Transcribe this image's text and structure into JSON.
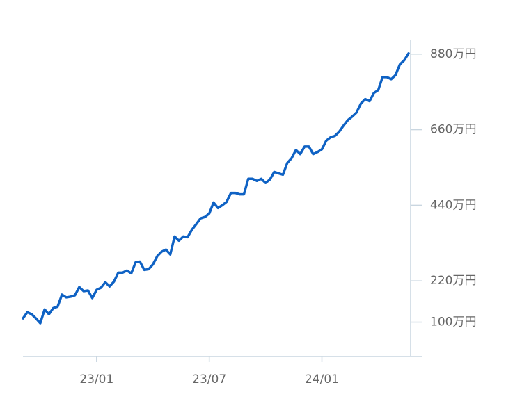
{
  "chart_data": {
    "type": "line",
    "categories": [
      null,
      null,
      null,
      null,
      null,
      null,
      null,
      null,
      null,
      null,
      null,
      null,
      null,
      null,
      null,
      null,
      null,
      "23/01",
      null,
      null,
      null,
      null,
      null,
      null,
      null,
      null,
      null,
      null,
      null,
      null,
      null,
      null,
      null,
      null,
      null,
      null,
      null,
      null,
      null,
      null,
      null,
      null,
      null,
      "23/07",
      null,
      null,
      null,
      null,
      null,
      null,
      null,
      null,
      null,
      null,
      null,
      null,
      null,
      null,
      null,
      null,
      null,
      null,
      null,
      null,
      null,
      null,
      null,
      null,
      null,
      "24/01",
      null,
      null,
      null,
      null,
      null,
      null,
      null,
      null,
      null,
      null,
      null,
      null,
      null,
      null,
      null,
      null,
      null,
      null,
      null,
      null
    ],
    "values": [
      111,
      129,
      123,
      111,
      97,
      137,
      123,
      141,
      145,
      180,
      172,
      174,
      178,
      202,
      190,
      192,
      170,
      194,
      200,
      216,
      204,
      218,
      244,
      244,
      250,
      242,
      274,
      276,
      252,
      254,
      268,
      292,
      305,
      311,
      297,
      349,
      337,
      349,
      347,
      369,
      385,
      402,
      406,
      416,
      448,
      432,
      440,
      450,
      476,
      476,
      472,
      472,
      517,
      517,
      511,
      517,
      505,
      515,
      537,
      533,
      529,
      563,
      577,
      601,
      589,
      611,
      611,
      589,
      595,
      603,
      628,
      638,
      642,
      654,
      672,
      688,
      698,
      710,
      736,
      749,
      743,
      767,
      775,
      813,
      813,
      807,
      819,
      850,
      862,
      882
    ],
    "color": "#0f62c4",
    "ylim": [
      0,
      920
    ],
    "yticks": [
      {
        "value": 100,
        "label": "100万円"
      },
      {
        "value": 220,
        "label": "220万円"
      },
      {
        "value": 440,
        "label": "440万円"
      },
      {
        "value": 660,
        "label": "660万円"
      },
      {
        "value": 880,
        "label": "880万円"
      }
    ]
  }
}
